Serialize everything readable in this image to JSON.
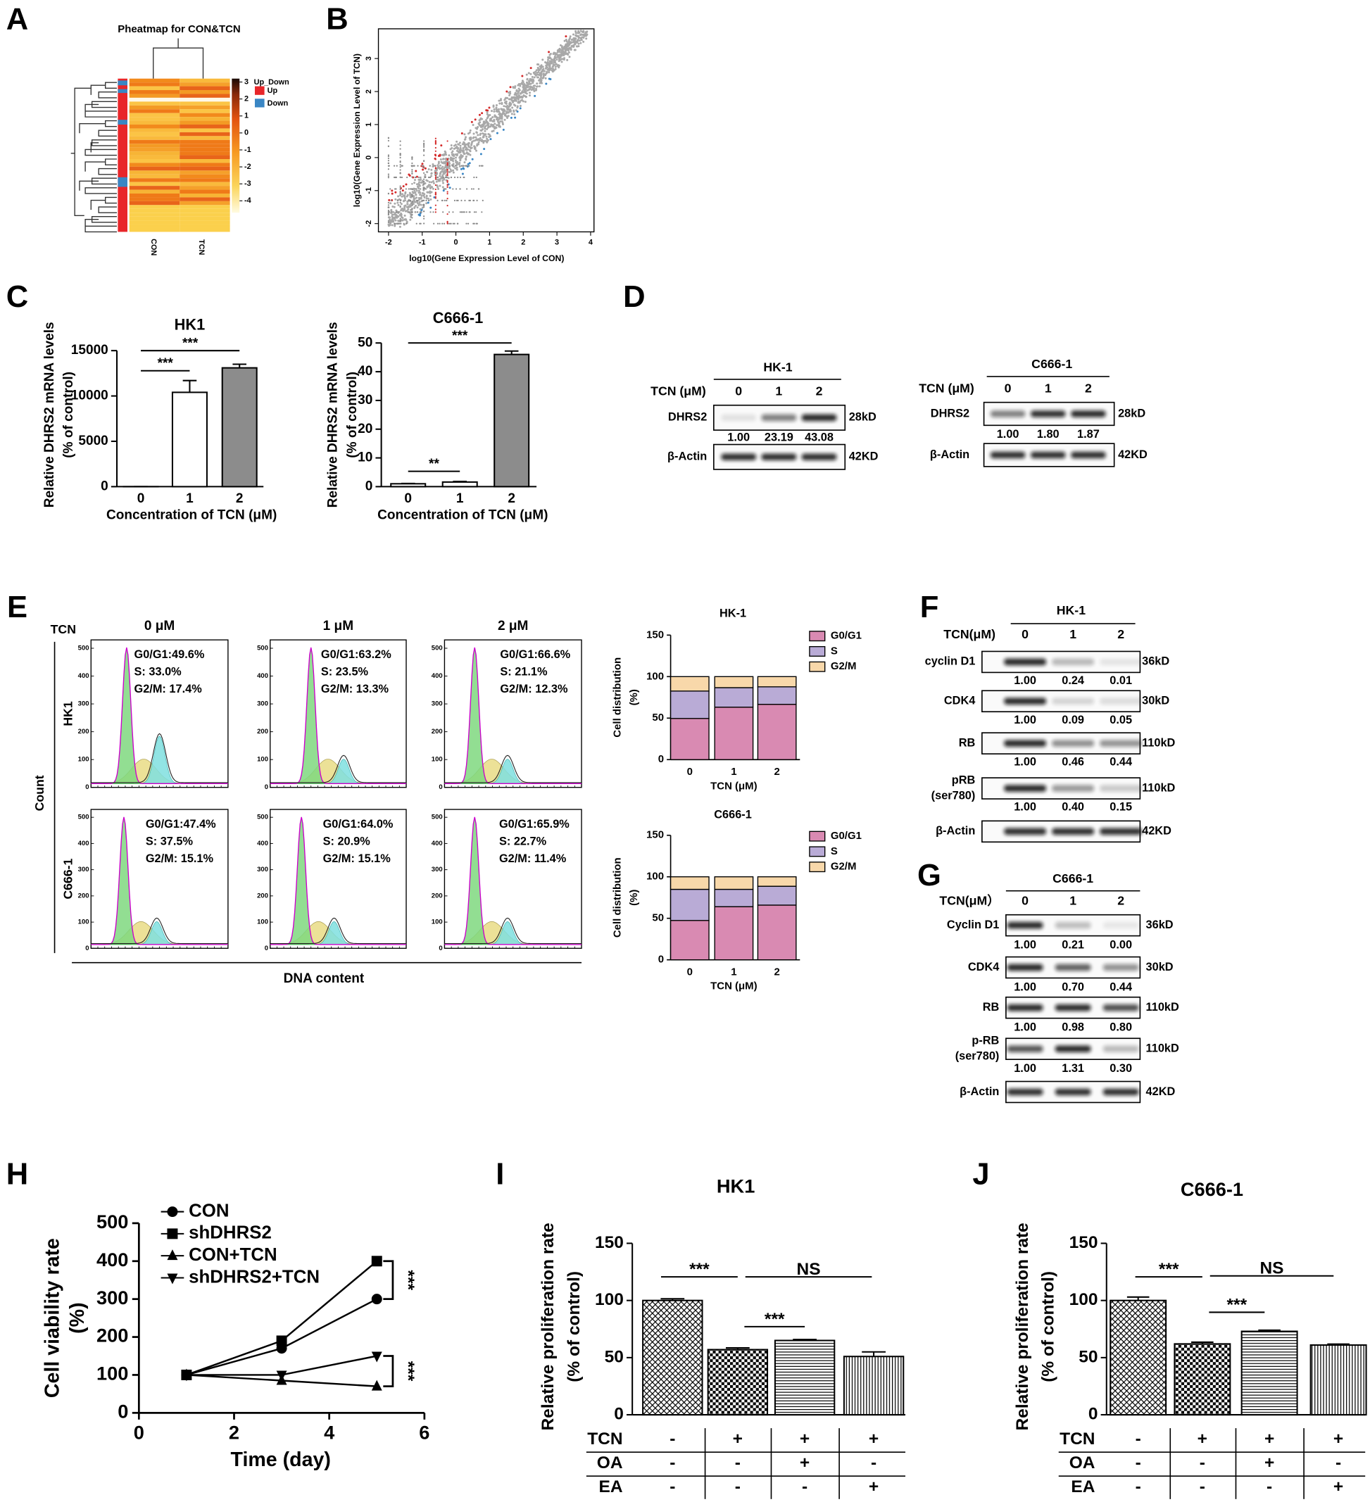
{
  "panels": [
    "A",
    "B",
    "C",
    "D",
    "E",
    "F",
    "G",
    "H",
    "I",
    "J"
  ],
  "chart_data": [
    {
      "type": "heatmap",
      "title": "Pheatmap for CON&TCN",
      "categories": [
        "CON",
        "TCN"
      ],
      "ylim": [
        -4.7,
        3.2
      ],
      "yticks": [
        3,
        2,
        1,
        0,
        -1,
        -2,
        -3,
        -4
      ],
      "legend_title": "Up_Down",
      "legend": [
        {
          "name": "Up",
          "color": "#e8262a"
        },
        {
          "name": "Down",
          "color": "#3a86c4"
        }
      ]
    },
    {
      "type": "scatter",
      "xlabel": "log10(Gene Expression Level of CON)",
      "ylabel": "log10(Gene Expression Level of TCN)",
      "xlim": [
        -2.3,
        4.1
      ],
      "ylim": [
        -2.25,
        3.9
      ],
      "xticks": [
        -2,
        -1,
        0,
        1,
        2,
        3,
        4
      ],
      "yticks": [
        -2,
        -1,
        0,
        1,
        2,
        3
      ],
      "colors": [
        "#a8a8a8",
        "#d42a2a",
        "#3a86c4"
      ]
    },
    {
      "type": "bar",
      "title": "HK1",
      "ylabel": [
        "Relative DHRS2 mRNA levels",
        "(% of control)"
      ],
      "xlabel": "Concentration of TCN (μM)",
      "categories": [
        "0",
        "1",
        "2"
      ],
      "values": [
        1,
        10400,
        13100
      ],
      "errors": [
        0,
        1300,
        400
      ],
      "colors": [
        "#ffffff",
        "#ffffff",
        "#8c8c8c"
      ],
      "ylim": [
        0,
        15000
      ],
      "yticks": [
        0,
        5000,
        10000,
        15000
      ],
      "annotations": [
        "***",
        "***"
      ]
    },
    {
      "type": "bar",
      "title": "C666-1",
      "ylabel": [
        "Relative DHRS2 mRNA levels",
        "(% of control)"
      ],
      "xlabel": "Concentration of TCN (μM)",
      "categories": [
        "0",
        "1",
        "2"
      ],
      "values": [
        1,
        1.6,
        46
      ],
      "errors": [
        0.1,
        0.2,
        1.2
      ],
      "colors": [
        "#ffffff",
        "#ffffff",
        "#8c8c8c"
      ],
      "ylim": [
        0,
        50
      ],
      "yticks": [
        0,
        10,
        20,
        30,
        40,
        50
      ],
      "annotations": [
        "**",
        "***"
      ]
    },
    {
      "type": "stacked_bar",
      "title": "HK-1",
      "ylabel": [
        "Cell distribution",
        "(%)"
      ],
      "xlabel": "TCN (μM)",
      "categories": [
        "0",
        "1",
        "2"
      ],
      "ylim": [
        0,
        150
      ],
      "yticks": [
        0,
        50,
        100,
        150
      ],
      "series": [
        {
          "name": "G0/G1",
          "color": "#d98ab2",
          "values": [
            49.6,
            63.2,
            66.6
          ]
        },
        {
          "name": "S",
          "color": "#b9abd6",
          "values": [
            33.0,
            23.5,
            21.1
          ]
        },
        {
          "name": "G2/M",
          "color": "#f8d8aa",
          "values": [
            17.4,
            13.3,
            12.3
          ]
        }
      ]
    },
    {
      "type": "stacked_bar",
      "title": "C666-1",
      "ylabel": [
        "Cell distribution",
        "(%)"
      ],
      "xlabel": "TCN (μM)",
      "categories": [
        "0",
        "1",
        "2"
      ],
      "ylim": [
        0,
        150
      ],
      "yticks": [
        0,
        50,
        100,
        150
      ],
      "series": [
        {
          "name": "G0/G1",
          "color": "#d98ab2",
          "values": [
            47.4,
            64.0,
            65.9
          ]
        },
        {
          "name": "S",
          "color": "#b9abd6",
          "values": [
            37.5,
            20.9,
            22.7
          ]
        },
        {
          "name": "G2/M",
          "color": "#f8d8aa",
          "values": [
            15.1,
            15.1,
            11.4
          ]
        }
      ]
    },
    {
      "type": "line",
      "xlabel": "Time (day)",
      "ylabel": [
        "Cell viability rate",
        "(%)"
      ],
      "x": [
        1,
        3,
        5
      ],
      "xlim": [
        0,
        6
      ],
      "xticks": [
        0,
        2,
        4,
        6
      ],
      "ylim": [
        0,
        500
      ],
      "yticks": [
        0,
        100,
        200,
        300,
        400,
        500
      ],
      "series": [
        {
          "name": "CON",
          "marker": "circle",
          "color": "#000000",
          "values": [
            100,
            170,
            300
          ]
        },
        {
          "name": "shDHRS2",
          "marker": "square",
          "color": "#000000",
          "values": [
            100,
            190,
            400
          ]
        },
        {
          "name": "CON+TCN",
          "marker": "triangle-up",
          "color": "#000000",
          "values": [
            100,
            85,
            70
          ]
        },
        {
          "name": "shDHRS2+TCN",
          "marker": "triangle-down",
          "color": "#000000",
          "values": [
            100,
            100,
            150
          ]
        }
      ],
      "annotations": [
        "***",
        "***"
      ]
    },
    {
      "type": "bar",
      "title": "HK1",
      "ylabel": [
        "Relative proliferation rate",
        "(% of control)"
      ],
      "values": [
        100,
        57,
        65,
        51
      ],
      "errors": [
        1.5,
        1.5,
        0.8,
        4
      ],
      "color": "#000000",
      "ylim": [
        0,
        150
      ],
      "yticks": [
        0,
        50,
        100,
        150
      ],
      "annotations": [
        "***",
        "NS",
        "***"
      ],
      "conditions": [
        {
          "label": "TCN",
          "values": [
            "-",
            "+",
            "+",
            "+"
          ]
        },
        {
          "label": "OA",
          "values": [
            "-",
            "-",
            "+",
            "-"
          ]
        },
        {
          "label": "EA",
          "values": [
            "-",
            "-",
            "-",
            "+"
          ]
        }
      ]
    },
    {
      "type": "bar",
      "title": "C666-1",
      "ylabel": [
        "Relative proliferation rate",
        "(% of control)"
      ],
      "values": [
        100,
        62,
        73,
        61
      ],
      "errors": [
        3,
        1.5,
        1,
        0.8
      ],
      "color": "#000000",
      "ylim": [
        0,
        150
      ],
      "yticks": [
        0,
        50,
        100,
        150
      ],
      "annotations": [
        "***",
        "NS",
        "***"
      ],
      "conditions": [
        {
          "label": "TCN",
          "values": [
            "-",
            "+",
            "+",
            "+"
          ]
        },
        {
          "label": "OA",
          "values": [
            "-",
            "-",
            "+",
            "-"
          ]
        },
        {
          "label": "EA",
          "values": [
            "-",
            "-",
            "-",
            "+"
          ]
        }
      ]
    }
  ],
  "flow": {
    "header": "TCN",
    "columns": [
      "0 μM",
      "1 μM",
      "2 μM"
    ],
    "rows": [
      "HK1",
      "C666-1"
    ],
    "ylabel": "Count",
    "xlabel": "DNA content",
    "ylim": [
      0,
      530
    ],
    "yticks": [
      0,
      100,
      200,
      300,
      400,
      500
    ],
    "stats": [
      [
        [
          "G0/G1:49.6%",
          "S: 33.0%",
          "G2/M: 17.4%"
        ],
        [
          "G0/G1:63.2%",
          "S: 23.5%",
          "G2/M: 13.3%"
        ],
        [
          "G0/G1:66.6%",
          "S: 21.1%",
          "G2/M: 12.3%"
        ]
      ],
      [
        [
          "G0/G1:47.4%",
          "S: 37.5%",
          "G2/M: 15.1%"
        ],
        [
          "G0/G1:64.0%",
          "S: 20.9%",
          "G2/M: 15.1%"
        ],
        [
          "G0/G1:65.9%",
          "S: 22.7%",
          "G2/M: 11.4%"
        ]
      ]
    ]
  },
  "blots": [
    {
      "title": "HK-1",
      "header": "TCN (μM)",
      "lanes": [
        "0",
        "1",
        "2"
      ],
      "rows": [
        {
          "label": [
            "DHRS2"
          ],
          "size": "28kD",
          "quant": [
            "1.00",
            "23.19",
            "43.08"
          ]
        },
        {
          "label": [
            "β-Actin"
          ],
          "size": "42KD"
        }
      ]
    },
    {
      "title": "C666-1",
      "header": "TCN (μM)",
      "lanes": [
        "0",
        "1",
        "2"
      ],
      "rows": [
        {
          "label": [
            "DHRS2"
          ],
          "size": "28kD",
          "quant": [
            "1.00",
            "1.80",
            "1.87"
          ]
        },
        {
          "label": [
            "β-Actin"
          ],
          "size": "42KD"
        }
      ]
    },
    {
      "title": "HK-1",
      "header": "TCN(μM)",
      "lanes": [
        "0",
        "1",
        "2"
      ],
      "rows": [
        {
          "label": [
            "cyclin D1"
          ],
          "size": "36kD",
          "quant": [
            "1.00",
            "0.24",
            "0.01"
          ]
        },
        {
          "label": [
            "CDK4"
          ],
          "size": "30kD",
          "quant": [
            "1.00",
            "0.09",
            "0.05"
          ]
        },
        {
          "label": [
            "RB"
          ],
          "size": "110kD",
          "quant": [
            "1.00",
            "0.46",
            "0.44"
          ]
        },
        {
          "label": [
            "pRB",
            "(ser780)"
          ],
          "size": "110kD",
          "quant": [
            "1.00",
            "0.40",
            "0.15"
          ]
        },
        {
          "label": [
            "β-Actin"
          ],
          "size": "42KD"
        }
      ]
    },
    {
      "title": "C666-1",
      "header": "TCN(μM）",
      "lanes": [
        "0",
        "1",
        "2"
      ],
      "rows": [
        {
          "label": [
            "Cyclin D1"
          ],
          "size": "36kD",
          "quant": [
            "1.00",
            "0.21",
            "0.00"
          ]
        },
        {
          "label": [
            "CDK4"
          ],
          "size": "30kD",
          "quant": [
            "1.00",
            "0.70",
            "0.44"
          ]
        },
        {
          "label": [
            "RB"
          ],
          "size": "110kD",
          "quant": [
            "1.00",
            "0.98",
            "0.80"
          ]
        },
        {
          "label": [
            "p-RB",
            "(ser780)"
          ],
          "size": "110kD",
          "quant": [
            "1.00",
            "1.31",
            "0.30"
          ]
        },
        {
          "label": [
            "β-Actin"
          ],
          "size": "42KD"
        }
      ]
    }
  ]
}
